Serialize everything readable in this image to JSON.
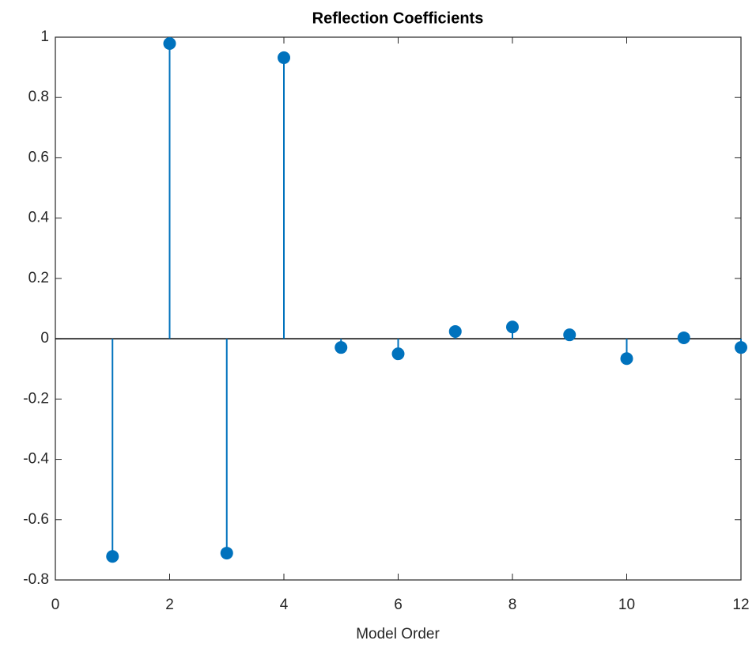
{
  "chart_data": {
    "type": "stem",
    "title": "Reflection Coefficients",
    "xlabel": "Model Order",
    "x": [
      1,
      2,
      3,
      4,
      5,
      6,
      7,
      8,
      9,
      10,
      11,
      12
    ],
    "values": [
      -0.722,
      0.979,
      -0.711,
      0.932,
      -0.029,
      -0.05,
      0.024,
      0.039,
      0.013,
      -0.066,
      0.003,
      -0.029
    ],
    "color": "#0072bd",
    "xlim": [
      0,
      12
    ],
    "xticks": [
      0,
      2,
      4,
      6,
      8,
      10,
      12
    ],
    "ylim": [
      -0.8,
      1
    ],
    "yticks": [
      -0.8,
      -0.6,
      -0.4,
      -0.2,
      0,
      0.2,
      0.4,
      0.6,
      0.8,
      1
    ],
    "grid": false,
    "box": true
  }
}
